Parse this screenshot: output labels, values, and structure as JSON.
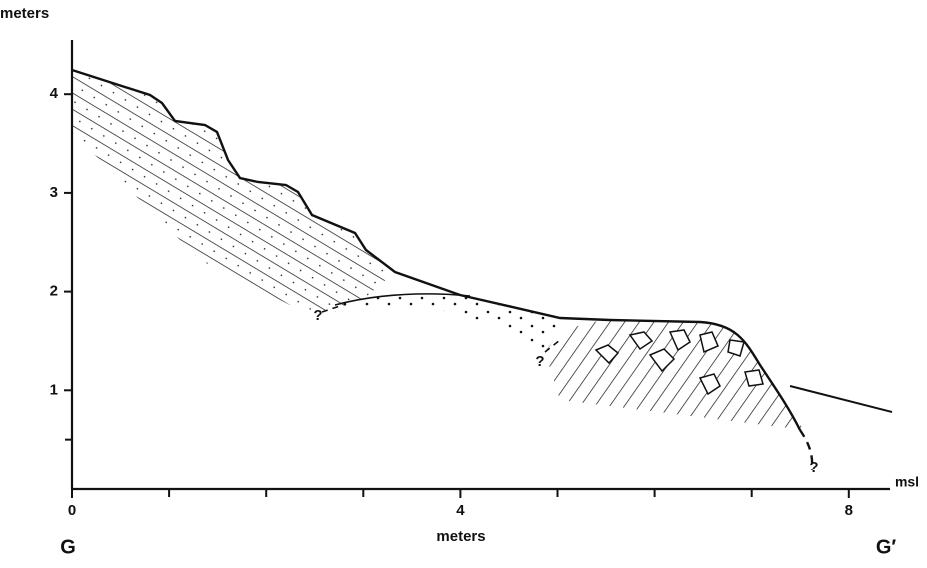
{
  "y_axis": {
    "label": "meters",
    "ticks": [
      1,
      2,
      3,
      4
    ],
    "minor_ticks": [
      0.5
    ]
  },
  "x_axis": {
    "label": "meters",
    "ticks": [
      0,
      4,
      8
    ],
    "minor_ticks": [
      1,
      2,
      3,
      5,
      6,
      7
    ]
  },
  "sea_level": "msl",
  "section_start": "G",
  "section_end": "G′",
  "uncertain_marks": [
    "?",
    "?",
    "?"
  ]
}
